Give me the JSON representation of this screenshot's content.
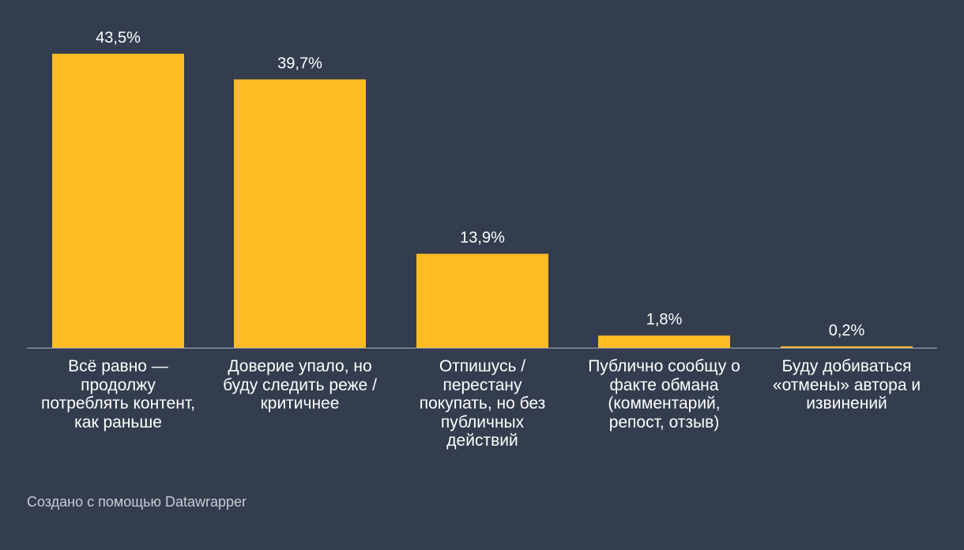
{
  "chart_data": {
    "type": "bar",
    "categories": [
      "Всё равно — продолжу потреблять контент, как раньше",
      "Доверие упало, но буду следить реже / критичнее",
      "Отпишусь / перестану покупать, но без публичных действий",
      "Публично сообщу о факте обмана (комментарий, репост, отзыв)",
      "Буду добиваться «отмены» автора и извинений"
    ],
    "values": [
      43.5,
      39.7,
      13.9,
      1.8,
      0.2
    ],
    "value_labels": [
      "43,5%",
      "39,7%",
      "13,9%",
      "1,8%",
      "0,2%"
    ],
    "ylim": [
      0,
      43.5
    ],
    "grid": false,
    "colors": {
      "bar": "#ffbb22",
      "background": "#333d4e",
      "baseline": "#aab0ba",
      "text": "#ffffff",
      "credit": "#c9ccd2"
    }
  },
  "credit": "Создано с помощью Datawrapper"
}
